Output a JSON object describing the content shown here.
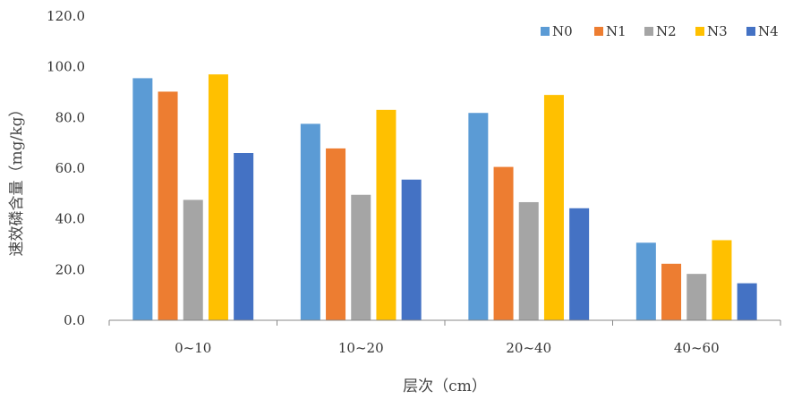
{
  "chart_data": {
    "type": "bar",
    "xlabel": "层次（cm）",
    "ylabel": "速效磷含量（mg/kg）",
    "ylim": [
      0,
      120
    ],
    "yticks": [
      "0.0",
      "20.0",
      "40.0",
      "60.0",
      "80.0",
      "100.0",
      "120.0"
    ],
    "categories": [
      "0~10",
      "10~20",
      "20~40",
      "40~60"
    ],
    "grid": false,
    "legend_position": "top-right",
    "series": [
      {
        "name": "N0",
        "color": "#5B9BD5",
        "values": [
          95.5,
          77.5,
          81.8,
          30.6
        ]
      },
      {
        "name": "N1",
        "color": "#ED7D31",
        "values": [
          90.2,
          67.8,
          60.5,
          22.3
        ]
      },
      {
        "name": "N2",
        "color": "#A5A5A5",
        "values": [
          47.5,
          49.5,
          46.6,
          18.3
        ]
      },
      {
        "name": "N3",
        "color": "#FFC000",
        "values": [
          97.0,
          83.0,
          88.9,
          31.6
        ]
      },
      {
        "name": "N4",
        "color": "#4472C4",
        "values": [
          66.0,
          55.5,
          44.2,
          14.6
        ]
      }
    ]
  }
}
